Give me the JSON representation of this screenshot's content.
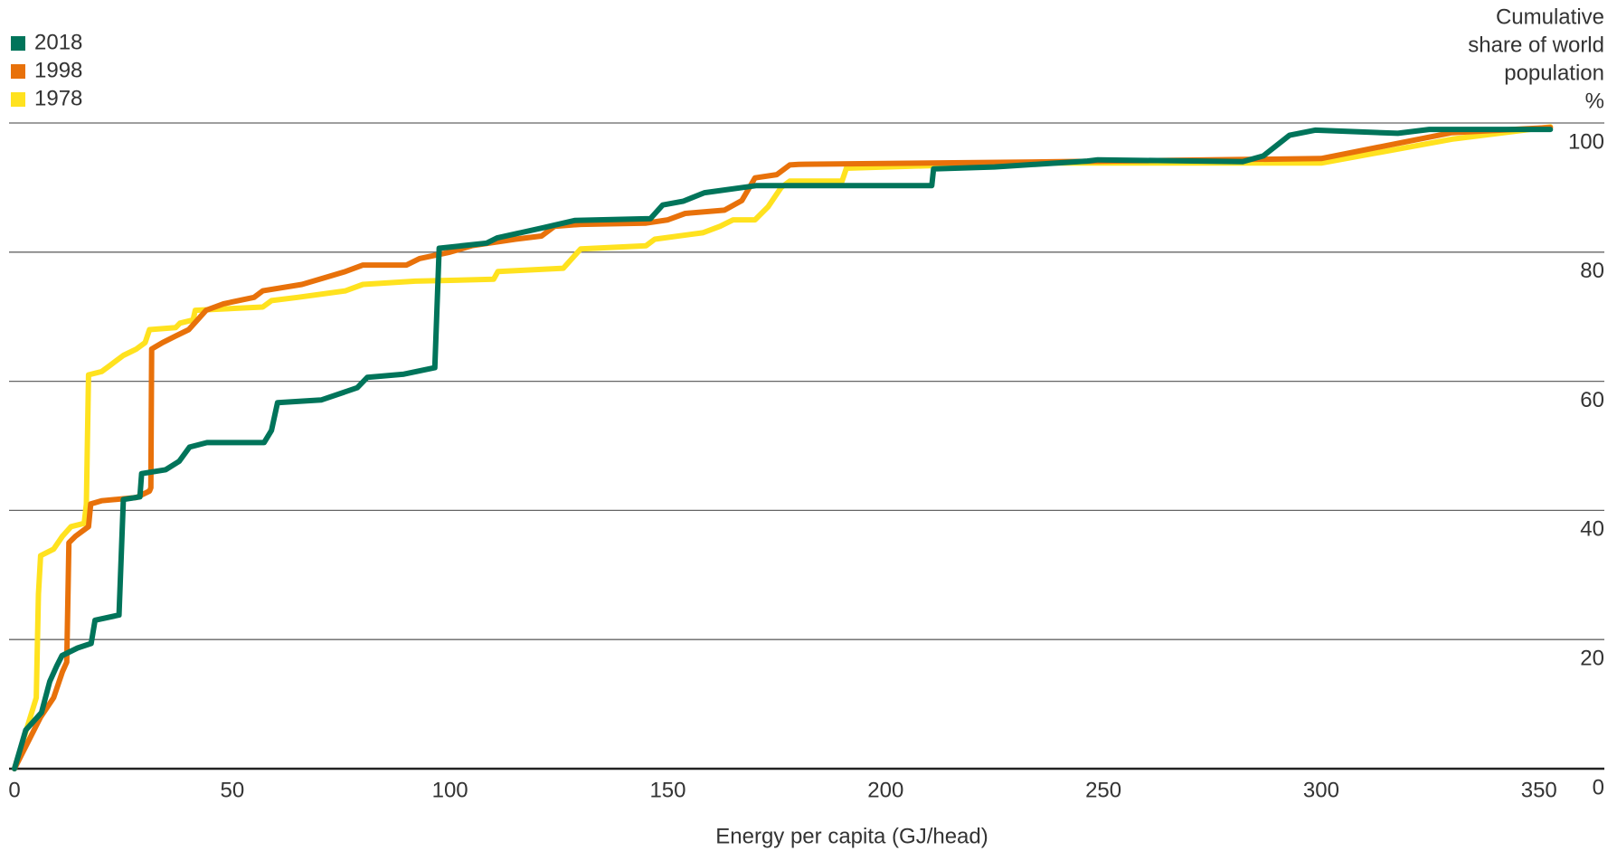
{
  "chart_data": {
    "type": "line",
    "x_label": "Energy per capita (GJ/head)",
    "y_label": [
      "Cumulative",
      "share of world",
      "population",
      "%"
    ],
    "xlim": [
      0,
      365
    ],
    "ylim": [
      0,
      100
    ],
    "xticks": [
      0,
      50,
      100,
      150,
      200,
      250,
      300,
      350
    ],
    "yticks": [
      0,
      20,
      40,
      60,
      80,
      100
    ],
    "grid": true,
    "legend": "top-left",
    "series": [
      {
        "name": "2018",
        "color": "#00745a",
        "x": [
          0,
          2.6,
          6.2,
          8.1,
          9.7,
          10.9,
          14.5,
          17.6,
          18.5,
          24,
          25,
          28.8,
          29.2,
          34.7,
          37.8,
          40.2,
          44.2,
          57.3,
          59,
          60.4,
          70.4,
          78.7,
          81,
          89.4,
          96.5,
          97.5,
          108.4,
          110.8,
          115.5,
          121.5,
          128.6,
          146,
          148.8,
          153.6,
          158.4,
          170.2,
          186.9,
          210.6,
          211,
          225,
          246.3,
          248.7,
          282,
          286.7,
          292.7,
          298.6,
          317.6,
          324.8,
          352.6
        ],
        "values": [
          0,
          6,
          8.7,
          13.5,
          15.9,
          17.5,
          18.7,
          19.4,
          23,
          23.8,
          41.7,
          42.1,
          45.7,
          46.3,
          47.6,
          49.8,
          50.5,
          50.5,
          52.4,
          56.7,
          57.1,
          59,
          60.6,
          61.1,
          62.1,
          80.6,
          81.4,
          82.2,
          82.9,
          83.8,
          84.9,
          85.2,
          87.3,
          87.9,
          89.2,
          90.3,
          90.3,
          90.3,
          92.9,
          93.2,
          94.1,
          94.3,
          94,
          94.9,
          98.1,
          98.9,
          98.4,
          99,
          99
        ]
      },
      {
        "name": "1998",
        "color": "#e8710a",
        "x": [
          0,
          6,
          9,
          11,
          12,
          12.5,
          14,
          16,
          17,
          17.5,
          20,
          28,
          31,
          31.3,
          31.5,
          34,
          37,
          40,
          44,
          48,
          55,
          57,
          66,
          71,
          76,
          80,
          90,
          93,
          100,
          105,
          115,
          121,
          124,
          130,
          145,
          150,
          154,
          163,
          167,
          170,
          175,
          178,
          180,
          240,
          300,
          330,
          352.6
        ],
        "values": [
          0,
          8,
          11,
          15,
          16.5,
          35,
          36,
          37,
          37.5,
          41,
          41.5,
          42,
          43,
          43.5,
          65,
          66,
          67,
          68,
          71,
          72,
          73,
          74,
          75,
          76,
          77,
          78,
          78,
          79,
          80,
          81,
          82,
          82.5,
          84,
          84.3,
          84.5,
          85,
          86,
          86.5,
          88,
          91.5,
          92,
          93.5,
          93.6,
          94,
          94.5,
          98.5,
          99.3
        ]
      },
      {
        "name": "1978",
        "color": "#ffe21f",
        "x": [
          0,
          5,
          5.5,
          6,
          9,
          11,
          13,
          16,
          16.5,
          17,
          20,
          22,
          25,
          28,
          30,
          31,
          37,
          38,
          41,
          41.5,
          57,
          59,
          65,
          76,
          80,
          92,
          110,
          111,
          126,
          128,
          130,
          145,
          147,
          158,
          162,
          165,
          170,
          173,
          176,
          178,
          190,
          191,
          230,
          300,
          330,
          352.6
        ],
        "values": [
          0,
          11,
          27,
          33,
          34,
          36,
          37.5,
          38,
          41,
          61,
          61.5,
          62.5,
          64,
          65,
          66,
          68,
          68.3,
          69,
          69.5,
          71,
          71.5,
          72.5,
          73,
          74,
          75,
          75.5,
          75.8,
          77,
          77.5,
          79,
          80.5,
          81,
          82,
          83,
          84,
          85,
          85,
          87,
          90,
          91,
          91,
          93,
          93.8,
          93.8,
          97.5,
          99.4
        ]
      }
    ]
  }
}
